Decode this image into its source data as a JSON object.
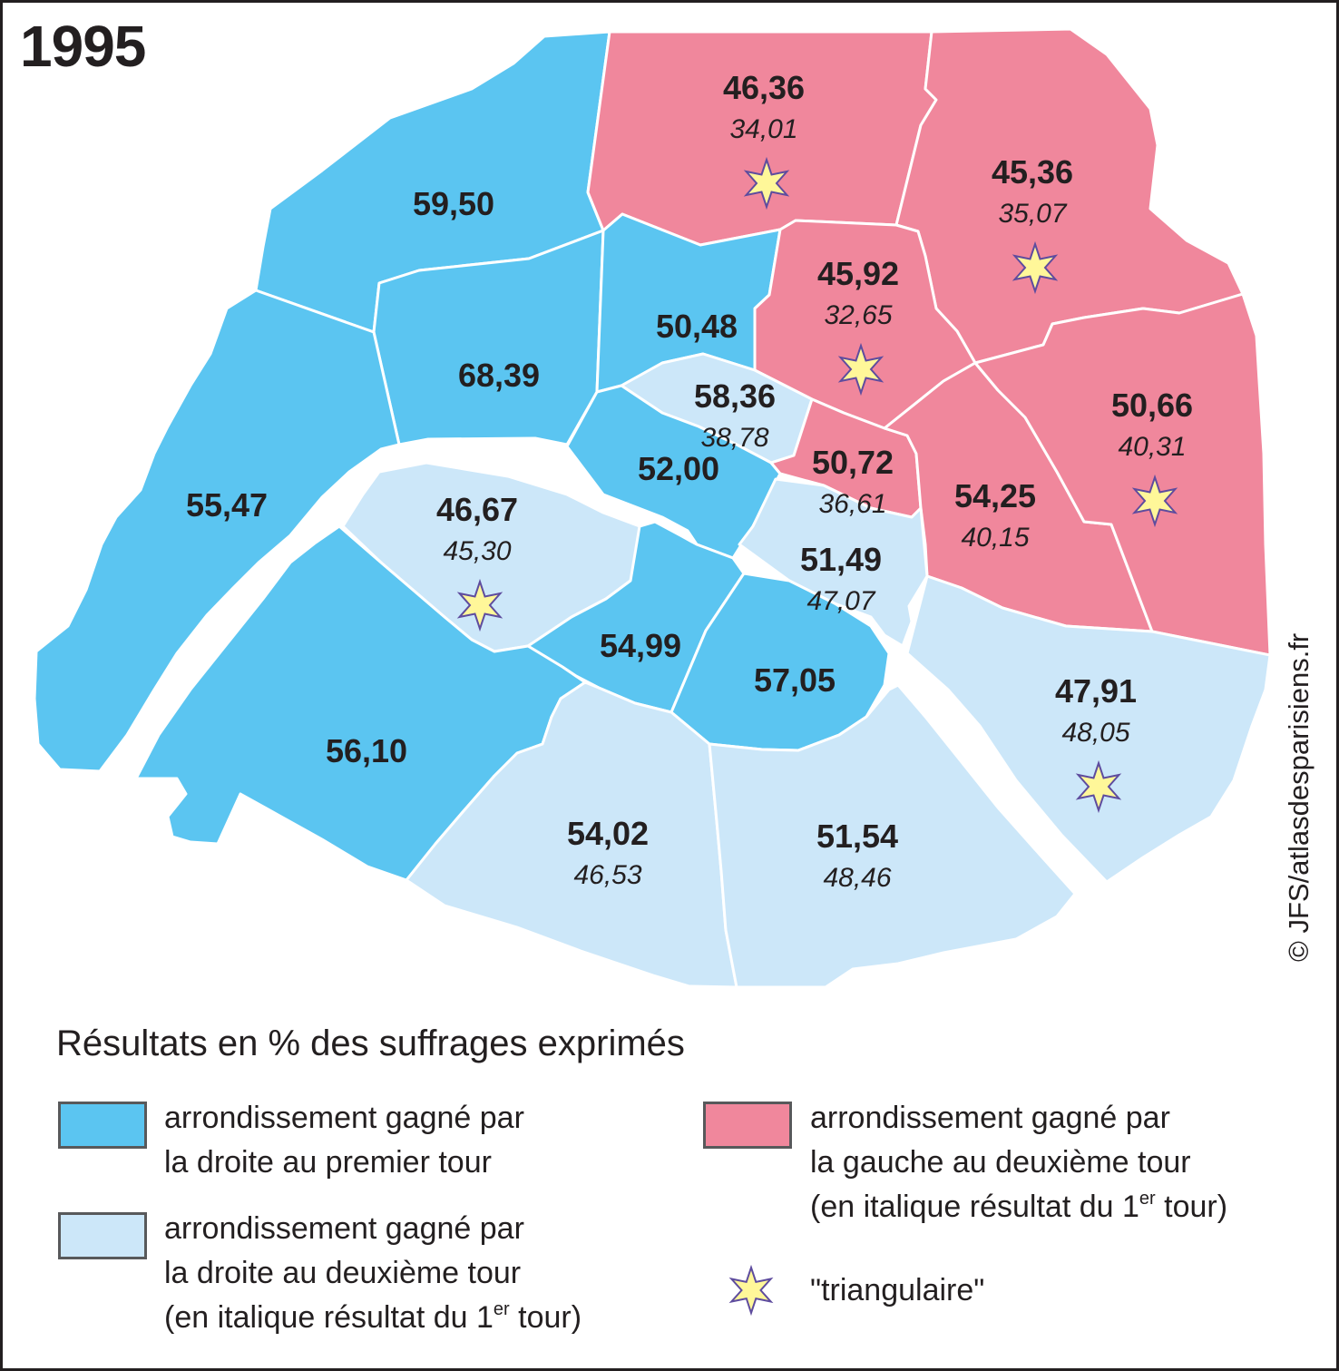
{
  "title": "1995",
  "credit": "© JFS/atlasdesparisiens.fr",
  "colors": {
    "droite_premier_tour": "#5bc5f1",
    "droite_deuxieme_tour": "#cce7f9",
    "gauche_deuxieme_tour": "#f0879c",
    "border": "#ffffff",
    "star_fill": "#fff799",
    "star_stroke": "#5e4c9e"
  },
  "legend": {
    "title": "Résultats en % des suffrages exprimés",
    "items": [
      {
        "key": "droite_premier_tour",
        "line1": "arrondissement gagné par",
        "line2": "la droite au premier tour"
      },
      {
        "key": "droite_deuxieme_tour",
        "line1": "arrondissement gagné par",
        "line2": "la droite au deuxième tour",
        "line3a": "(en italique résultat du 1",
        "line3sup": "er",
        "line3b": " tour)"
      },
      {
        "key": "gauche_deuxieme_tour",
        "line1": "arrondissement gagné par",
        "line2": "la gauche au deuxième tour",
        "line3a": "(en italique résultat du 1",
        "line3sup": "er",
        "line3b": " tour)"
      },
      {
        "key": "triangulaire",
        "icon": "star-icon",
        "line1": "\"triangulaire\""
      }
    ]
  },
  "regions": [
    {
      "id": "r17",
      "category": "droite_premier_tour",
      "result": "59,50",
      "first_round": "",
      "triangulaire": false
    },
    {
      "id": "r18",
      "category": "gauche_deuxieme_tour",
      "result": "46,36",
      "first_round": "34,01",
      "triangulaire": true
    },
    {
      "id": "r19",
      "category": "gauche_deuxieme_tour",
      "result": "45,36",
      "first_round": "35,07",
      "triangulaire": true
    },
    {
      "id": "r8",
      "category": "droite_premier_tour",
      "result": "68,39",
      "first_round": "",
      "triangulaire": false
    },
    {
      "id": "r9",
      "category": "droite_premier_tour",
      "result": "50,48",
      "first_round": "",
      "triangulaire": false
    },
    {
      "id": "r10",
      "category": "gauche_deuxieme_tour",
      "result": "45,92",
      "first_round": "32,65",
      "triangulaire": true
    },
    {
      "id": "r2",
      "category": "droite_deuxieme_tour",
      "result": "58,36",
      "first_round": "38,78",
      "triangulaire": false
    },
    {
      "id": "r1",
      "category": "droite_premier_tour",
      "result": "52,00",
      "first_round": "",
      "triangulaire": false
    },
    {
      "id": "r3",
      "category": "gauche_deuxieme_tour",
      "result": "50,72",
      "first_round": "36,61",
      "triangulaire": false
    },
    {
      "id": "r11",
      "category": "gauche_deuxieme_tour",
      "result": "54,25",
      "first_round": "40,15",
      "triangulaire": false
    },
    {
      "id": "r20",
      "category": "gauche_deuxieme_tour",
      "result": "50,66",
      "first_round": "40,31",
      "triangulaire": true
    },
    {
      "id": "r16",
      "category": "droite_premier_tour",
      "result": "55,47",
      "first_round": "",
      "triangulaire": false
    },
    {
      "id": "r7",
      "category": "droite_deuxieme_tour",
      "result": "46,67",
      "first_round": "45,30",
      "triangulaire": true
    },
    {
      "id": "r4",
      "category": "droite_deuxieme_tour",
      "result": "51,49",
      "first_round": "47,07",
      "triangulaire": false
    },
    {
      "id": "r6",
      "category": "droite_premier_tour",
      "result": "54,99",
      "first_round": "",
      "triangulaire": false
    },
    {
      "id": "r5",
      "category": "droite_premier_tour",
      "result": "57,05",
      "first_round": "",
      "triangulaire": false
    },
    {
      "id": "r12",
      "category": "droite_deuxieme_tour",
      "result": "47,91",
      "first_round": "48,05",
      "triangulaire": true
    },
    {
      "id": "r15",
      "category": "droite_premier_tour",
      "result": "56,10",
      "first_round": "",
      "triangulaire": false
    },
    {
      "id": "r14",
      "category": "droite_deuxieme_tour",
      "result": "54,02",
      "first_round": "46,53",
      "triangulaire": false
    },
    {
      "id": "r13",
      "category": "droite_deuxieme_tour",
      "result": "51,54",
      "first_round": "48,46",
      "triangulaire": false
    }
  ]
}
